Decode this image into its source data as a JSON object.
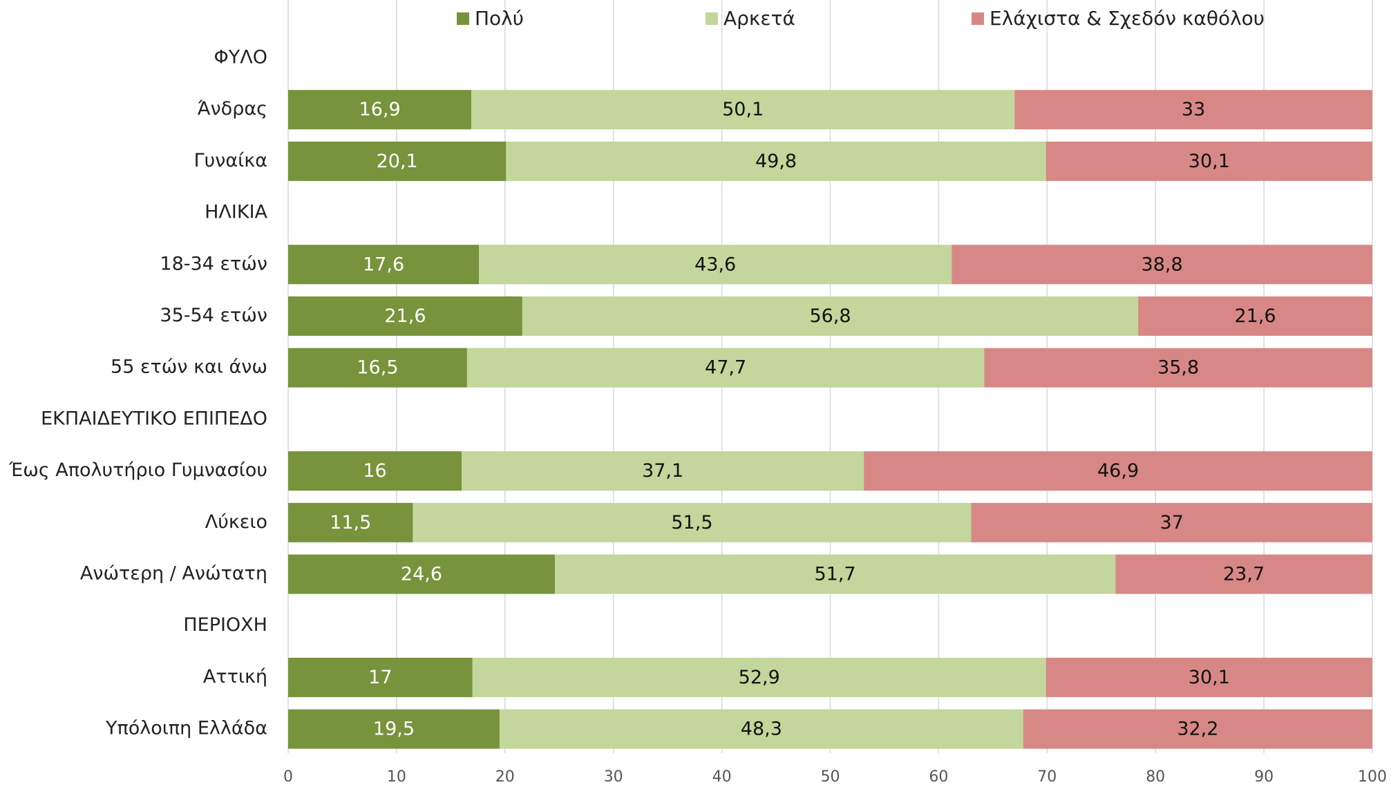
{
  "chart_data": {
    "type": "stacked_barh",
    "categories": [
      "ΦΥΛΟ",
      "Άνδρας",
      "Γυναίκα",
      "ΗΛΙΚΙΑ",
      "18-34 ετών",
      "35-54 ετών",
      "55 ετών και άνω",
      "ΕΚΠΑΙΔΕΥΤΙΚΟ ΕΠΙΠΕΔΟ",
      "Έως Απολυτήριο Γυμνασίου",
      "Λύκειο",
      "Ανώτερη / Ανώτατη",
      "ΠΕΡΙΟΧΗ",
      "Αττική",
      "Υπόλοιπη Ελλάδα"
    ],
    "series": [
      {
        "name": "Πολύ",
        "color": "#77933c",
        "label_color": "#ffffff",
        "values": [
          null,
          16.9,
          20.1,
          null,
          17.6,
          21.6,
          16.5,
          null,
          16,
          11.5,
          24.6,
          null,
          17,
          19.5
        ],
        "value_labels": [
          null,
          "16,9",
          "20,1",
          null,
          "17,6",
          "21,6",
          "16,5",
          null,
          "16",
          "11,5",
          "24,6",
          null,
          "17",
          "19,5"
        ]
      },
      {
        "name": "Αρκετά",
        "color": "#c3d69b",
        "label_color": "#111111",
        "values": [
          null,
          50.1,
          49.8,
          null,
          43.6,
          56.8,
          47.7,
          null,
          37.1,
          51.5,
          51.7,
          null,
          52.9,
          48.3
        ],
        "value_labels": [
          null,
          "50,1",
          "49,8",
          null,
          "43,6",
          "56,8",
          "47,7",
          null,
          "37,1",
          "51,5",
          "51,7",
          null,
          "52,9",
          "48,3"
        ]
      },
      {
        "name": "Ελάχιστα & Σχεδόν καθόλου",
        "color": "#d78886",
        "label_color": "#111111",
        "values": [
          null,
          33,
          30.1,
          null,
          38.8,
          21.6,
          35.8,
          null,
          46.9,
          37,
          23.7,
          null,
          30.1,
          32.2
        ],
        "value_labels": [
          null,
          "33",
          "30,1",
          null,
          "38,8",
          "21,6",
          "35,8",
          null,
          "46,9",
          "37",
          "23,7",
          null,
          "30,1",
          "32,2"
        ]
      }
    ],
    "xlim": [
      0,
      100
    ],
    "xticks": [
      0,
      10,
      20,
      30,
      40,
      50,
      60,
      70,
      80,
      90,
      100
    ],
    "grid": true,
    "legend": "top"
  }
}
